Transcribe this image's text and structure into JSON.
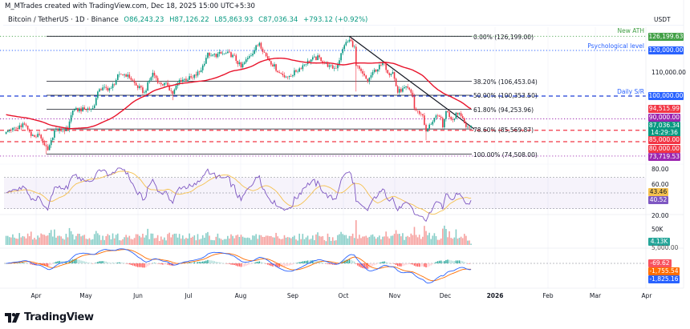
{
  "header": {
    "author_line": "M_MTrades created with TradingView.com, Dec 18, 2025 15:00 UTC+5:30",
    "symbol": "Bitcoin / TetherUS · 1D · Binance",
    "open": "O86,243.23",
    "high": "H87,126.22",
    "low": "L85,863.93",
    "close": "C87,036.34",
    "change": "+793.12 (+0.92%)"
  },
  "price_axis": {
    "currency": "USDT",
    "ath": "126,199.63",
    "psych": "120,000.00",
    "p110": "110,000.00",
    "p100": "100,000.00",
    "ma": "94,515.99",
    "p90": "90,000.00",
    "last": "87,036.34",
    "countdown": "14:29:36",
    "p85": "85,000.00",
    "p80": "80,000.00",
    "p73": "73,719.53",
    "rsi_80": "80.00",
    "rsi_60": "60.00",
    "rsi_ma": "43.46",
    "rsi": "40.52",
    "rsi_20": "20.00",
    "vol_50k": "50K",
    "vol": "4.13K",
    "macd_5000": "5,000.00",
    "macd_hist": "-69.62",
    "macd_signal": "-1,755.54",
    "macd_line": "-1,825.16"
  },
  "footer": {
    "logo": "TradingView"
  },
  "chart_data": {
    "type": "candlestick",
    "symbol": "BTCUSDT",
    "interval": "1D",
    "y_scale": "linear",
    "colors": {
      "up": "#089981",
      "down": "#f23645",
      "ma": "#e8132b",
      "rsi": "#7e57c2",
      "rsi_ma": "#f5c14f",
      "macd": "#2962ff",
      "signal": "#ff6d00",
      "fib": "#131722",
      "blue_level": "#2962ff",
      "red_level": "#f23645",
      "purple_level": "#9c27b0",
      "ath": "#43a047"
    },
    "x_ticks": [
      "Apr",
      "May",
      "Jun",
      "Jul",
      "Aug",
      "Sep",
      "Oct",
      "Nov",
      "Dec",
      "2026",
      "Feb",
      "Mar",
      "Apr"
    ],
    "price_path": [
      {
        "date": "2025-03-14",
        "close": 84200
      },
      {
        "date": "2025-03-20",
        "close": 86000
      },
      {
        "date": "2025-03-25",
        "close": 87500
      },
      {
        "date": "2025-03-29",
        "close": 82500
      },
      {
        "date": "2025-04-03",
        "close": 83000
      },
      {
        "date": "2025-04-06",
        "close": 78500
      },
      {
        "date": "2025-04-08",
        "close": 76300
      },
      {
        "date": "2025-04-12",
        "close": 85000
      },
      {
        "date": "2025-04-20",
        "close": 85200
      },
      {
        "date": "2025-04-23",
        "close": 93700
      },
      {
        "date": "2025-04-30",
        "close": 94200
      },
      {
        "date": "2025-05-05",
        "close": 94700
      },
      {
        "date": "2025-05-09",
        "close": 103000
      },
      {
        "date": "2025-05-16",
        "close": 103500
      },
      {
        "date": "2025-05-21",
        "close": 109600
      },
      {
        "date": "2025-05-26",
        "close": 109400
      },
      {
        "date": "2025-05-31",
        "close": 104600
      },
      {
        "date": "2025-06-05",
        "close": 101600
      },
      {
        "date": "2025-06-10",
        "close": 110200
      },
      {
        "date": "2025-06-14",
        "close": 105800
      },
      {
        "date": "2025-06-19",
        "close": 104600
      },
      {
        "date": "2025-06-22",
        "close": 100900
      },
      {
        "date": "2025-06-26",
        "close": 107000
      },
      {
        "date": "2025-07-04",
        "close": 108000
      },
      {
        "date": "2025-07-09",
        "close": 111300
      },
      {
        "date": "2025-07-13",
        "close": 119000
      },
      {
        "date": "2025-07-15",
        "close": 117700
      },
      {
        "date": "2025-07-23",
        "close": 118700
      },
      {
        "date": "2025-07-28",
        "close": 118000
      },
      {
        "date": "2025-08-02",
        "close": 112600
      },
      {
        "date": "2025-08-07",
        "close": 117500
      },
      {
        "date": "2025-08-13",
        "close": 123300
      },
      {
        "date": "2025-08-17",
        "close": 117500
      },
      {
        "date": "2025-08-25",
        "close": 110200
      },
      {
        "date": "2025-08-30",
        "close": 108400
      },
      {
        "date": "2025-09-04",
        "close": 110700
      },
      {
        "date": "2025-09-11",
        "close": 115500
      },
      {
        "date": "2025-09-18",
        "close": 117000
      },
      {
        "date": "2025-09-23",
        "close": 112800
      },
      {
        "date": "2025-09-28",
        "close": 112200
      },
      {
        "date": "2025-10-03",
        "close": 122300
      },
      {
        "date": "2025-10-06",
        "close": 124700
      },
      {
        "date": "2025-10-09",
        "close": 121600
      },
      {
        "date": "2025-10-10",
        "close": 113200
      },
      {
        "date": "2025-10-17",
        "close": 106400
      },
      {
        "date": "2025-10-20",
        "close": 110500
      },
      {
        "date": "2025-10-27",
        "close": 114500
      },
      {
        "date": "2025-10-29",
        "close": 110000
      },
      {
        "date": "2025-11-01",
        "close": 110500
      },
      {
        "date": "2025-11-04",
        "close": 101500
      },
      {
        "date": "2025-11-07",
        "close": 103400
      },
      {
        "date": "2025-11-11",
        "close": 102900
      },
      {
        "date": "2025-11-13",
        "close": 99700
      },
      {
        "date": "2025-11-14",
        "close": 94500
      },
      {
        "date": "2025-11-17",
        "close": 92200
      },
      {
        "date": "2025-11-19",
        "close": 91500
      },
      {
        "date": "2025-11-21",
        "close": 84500
      },
      {
        "date": "2025-11-26",
        "close": 90500
      },
      {
        "date": "2025-11-30",
        "close": 90400
      },
      {
        "date": "2025-12-01",
        "close": 86300
      },
      {
        "date": "2025-12-03",
        "close": 93400
      },
      {
        "date": "2025-12-07",
        "close": 89500
      },
      {
        "date": "2025-12-09",
        "close": 92700
      },
      {
        "date": "2025-12-11",
        "close": 92500
      },
      {
        "date": "2025-12-13",
        "close": 90300
      },
      {
        "date": "2025-12-15",
        "close": 86400
      },
      {
        "date": "2025-12-17",
        "close": 86200
      },
      {
        "date": "2025-12-18",
        "close": 87036.34
      }
    ],
    "wick_lows": [
      {
        "date": "2025-04-07",
        "low": 74508
      },
      {
        "date": "2025-06-22",
        "low": 98200
      },
      {
        "date": "2025-10-10",
        "low": 102000
      },
      {
        "date": "2025-11-21",
        "low": 80600
      }
    ],
    "last_candle": {
      "open": 86243.23,
      "high": 87126.22,
      "low": 85863.93,
      "close": 87036.34
    },
    "moving_average": {
      "period": 50,
      "last": 94515.99
    },
    "fib_levels": [
      {
        "label": "0.00% (126,199.00)",
        "price": 126199
      },
      {
        "label": "38.20% (106,453.04)",
        "price": 106453.04
      },
      {
        "label": "50.00% (100,353.50)",
        "price": 100353.5
      },
      {
        "label": "61.80% (94,253.96)",
        "price": 94253.96
      },
      {
        "label": "78.60% (85,569.87)",
        "price": 85569.87
      },
      {
        "label": "100.00% (74,508.00)",
        "price": 74508
      }
    ],
    "horizontal_levels": [
      {
        "price": 126199.63,
        "style": "dotted",
        "color": "#43a047",
        "annotation": "New ATH"
      },
      {
        "price": 120000,
        "style": "dotted",
        "color": "#2962ff",
        "annotation": "Psychological level"
      },
      {
        "price": 100000,
        "style": "dashed",
        "color": "#1e3fd6",
        "annotation": "Daily S/R"
      },
      {
        "price": 90000,
        "style": "dotted",
        "color": "#9c27b0",
        "annotation": ""
      },
      {
        "price": 85000,
        "style": "dashed",
        "color": "#f23645",
        "annotation": ""
      },
      {
        "price": 80000,
        "style": "dashed",
        "color": "#f23645",
        "annotation": ""
      },
      {
        "price": 73719.53,
        "style": "dotted",
        "color": "#9c27b0",
        "annotation": ""
      }
    ],
    "trendline": [
      {
        "date": "2025-10-06",
        "price": 126199
      },
      {
        "date": "2025-12-20",
        "price": 85500
      }
    ],
    "rsi": {
      "period": 14,
      "value": 40.52,
      "ma": 43.46,
      "band": [
        30,
        70
      ],
      "ticks": [
        80,
        60,
        20
      ]
    },
    "volume": {
      "last": "4.13K"
    },
    "macd": {
      "fast": 12,
      "slow": 26,
      "signal": 9,
      "histogram": -69.62,
      "signal_value": -1755.54,
      "macd_value": -1825.16
    }
  }
}
